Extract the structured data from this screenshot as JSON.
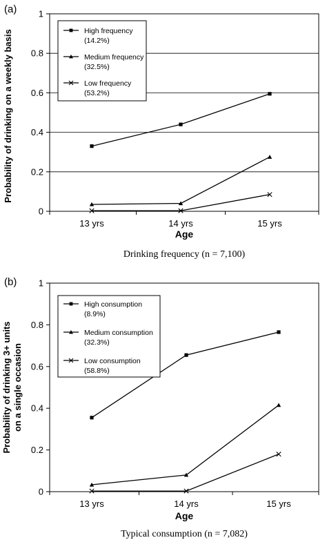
{
  "chart_data": [
    {
      "panel_label": "(a)",
      "type": "line",
      "categories": [
        "13 yrs",
        "14 yrs",
        "15 yrs"
      ],
      "series": [
        {
          "name": "High frequency",
          "share": "(14.2%)",
          "marker": "square",
          "values": [
            0.33,
            0.44,
            0.595
          ]
        },
        {
          "name": "Medium frequency",
          "share": "(32.5%)",
          "marker": "triangle",
          "values": [
            0.035,
            0.04,
            0.275
          ]
        },
        {
          "name": "Low frequency",
          "share": "(53.2%)",
          "marker": "x",
          "values": [
            0.003,
            0.003,
            0.085
          ]
        }
      ],
      "yticks": [
        "0",
        "0.2",
        "0.4",
        "0.6",
        "0.8",
        "1"
      ],
      "ylim": [
        0,
        1
      ],
      "ylabel": "Probability of drinking on a weekly basis",
      "xlabel": "Age",
      "caption": "Drinking frequency (n = 7,100)",
      "grid": true,
      "legend_position": "top-left"
    },
    {
      "panel_label": "(b)",
      "type": "line",
      "categories": [
        "13 yrs",
        "14 yrs",
        "15 yrs"
      ],
      "series": [
        {
          "name": "High consumption",
          "share": "(8.9%)",
          "marker": "square",
          "values": [
            0.355,
            0.655,
            0.765
          ]
        },
        {
          "name": "Medium consumption",
          "share": "(32.3%)",
          "marker": "triangle",
          "values": [
            0.033,
            0.08,
            0.415
          ]
        },
        {
          "name": "Low consumption",
          "share": "(58.8%)",
          "marker": "x",
          "values": [
            0.003,
            0.003,
            0.18
          ]
        }
      ],
      "yticks": [
        "0",
        "0.2",
        "0.4",
        "0.6",
        "0.8",
        "1"
      ],
      "ylim": [
        0,
        1
      ],
      "ylabel": "Probability of drinking 3+ units on a single occasion",
      "ylabel_lines": [
        "Probability of drinking 3+ units",
        "on a single occasion"
      ],
      "xlabel": "Age",
      "caption": "Typical consumption (n = 7,082)",
      "grid": false,
      "legend_position": "top-left"
    }
  ]
}
